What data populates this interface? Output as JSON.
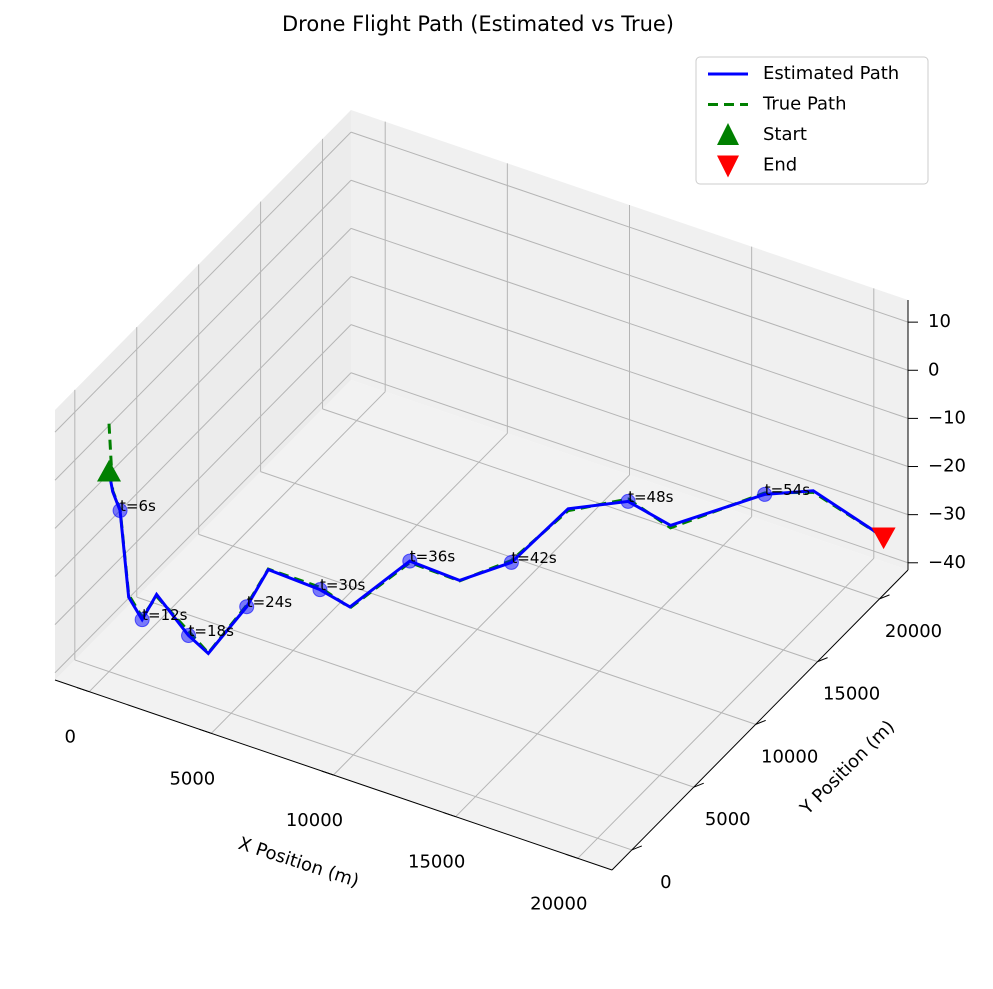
{
  "chart_data": {
    "type": "line3d",
    "title": "Drone Flight Path (Estimated vs True)",
    "xlabel": "X Position (m)",
    "ylabel": "Y Position (m)",
    "xlim": [
      -1400,
      21400
    ],
    "ylim": [
      -1600,
      22300
    ],
    "zlim": [
      -41.5,
      14.6
    ],
    "xticks": [
      0,
      5000,
      10000,
      15000,
      20000
    ],
    "yticks": [
      0,
      5000,
      10000,
      15000,
      20000
    ],
    "zticks": [
      {
        "value": -40,
        "label": "−40"
      },
      {
        "value": -30,
        "label": "−30"
      },
      {
        "value": -20,
        "label": "−20"
      },
      {
        "value": -10,
        "label": "−10"
      },
      0,
      10
    ],
    "grid": true,
    "legend": "upper right",
    "series": [
      {
        "name": "Estimated Path",
        "color": "#0000ff",
        "style": "solid",
        "x": [
          0,
          100,
          300,
          534,
          900,
          1292,
          2160,
          2697,
          3740,
          4326,
          5730,
          6545,
          8170,
          9523,
          10930,
          12472,
          14100,
          15253,
          17810,
          19129,
          21040
        ],
        "y": [
          0,
          100,
          300,
          534,
          900,
          1292,
          2160,
          2697,
          3740,
          4326,
          5730,
          6545,
          8170,
          9523,
          10930,
          12472,
          14100,
          15253,
          17810,
          19129,
          21040
        ],
        "z": [
          0,
          -4.2,
          -8.3,
          -26.5,
          -31.5,
          -26.6,
          -35.9,
          -40.1,
          -31.3,
          -24.1,
          -29.5,
          -33.8,
          -25.7,
          -30.9,
          -28.4,
          -18.6,
          -18.5,
          -24.5,
          -20.3,
          -20.7,
          -32
        ]
      },
      {
        "name": "True Path",
        "color": "#008000",
        "style": "dashed",
        "x": [
          0,
          100,
          300,
          534,
          900,
          1292,
          2160,
          2697,
          3740,
          4326,
          5730,
          6545,
          8170,
          9523,
          10930,
          12472,
          14100,
          15253,
          17810,
          19129,
          21040
        ],
        "y": [
          0,
          100,
          300,
          534,
          900,
          1292,
          2160,
          2697,
          3740,
          4326,
          5730,
          6545,
          8170,
          9523,
          10930,
          12472,
          14100,
          15253,
          17810,
          19129,
          21040
        ],
        "z": [
          10,
          -4,
          -8,
          -26,
          -31,
          -27,
          -35,
          -40,
          -31,
          -24,
          -29,
          -34,
          -26,
          -31,
          -28,
          -19,
          -18,
          -25,
          -20,
          -21,
          -32
        ]
      }
    ],
    "start": {
      "name": "Start",
      "color": "#008000",
      "x": 0,
      "y": 0,
      "z": 0
    },
    "end": {
      "name": "End",
      "color": "#ff0000",
      "x": 21040,
      "y": 21040,
      "z": -32
    },
    "time_markers": {
      "color": "#0000ff",
      "labels": [
        "t=6s",
        "t=12s",
        "t=18s",
        "t=24s",
        "t=30s",
        "t=36s",
        "t=42s",
        "t=48s",
        "t=54s"
      ],
      "x": [
        300,
        900,
        2160,
        3740,
        5730,
        8170,
        10930,
        14100,
        17810
      ],
      "y": [
        300,
        900,
        2160,
        3740,
        5730,
        8170,
        10930,
        14100,
        17810
      ],
      "z": [
        -8.3,
        -31.5,
        -35.9,
        -31.3,
        -29.5,
        -25.7,
        -28.4,
        -18.5,
        -20.3
      ]
    }
  }
}
